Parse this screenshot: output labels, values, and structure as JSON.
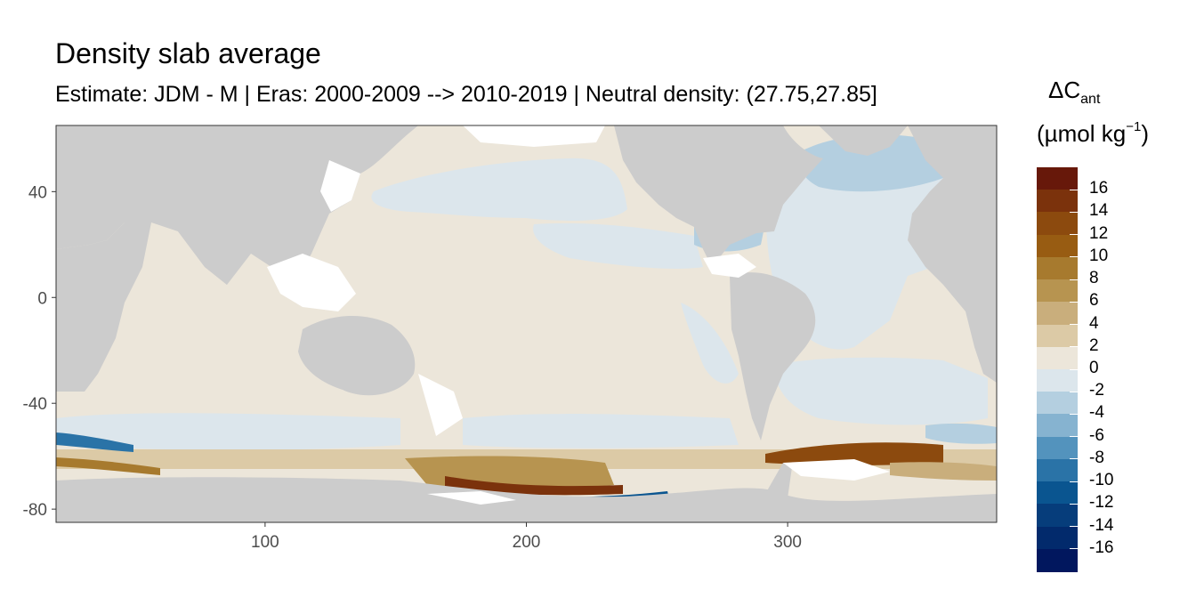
{
  "title": "Density slab average",
  "subtitle": "Estimate: JDM - M | Eras: 2000-2009 --> 2010-2019 | Neutral density: (27.75,27.85]",
  "chart_data": {
    "type": "heatmap",
    "title": "Density slab average",
    "subtitle": "Estimate: JDM - M | Eras: 2000-2009 --> 2010-2019 | Neutral density: (27.75,27.85]",
    "xlim": [
      20,
      380
    ],
    "ylim": [
      -85,
      65
    ],
    "x_ticks": [
      "100",
      "200",
      "300"
    ],
    "x_tick_values": [
      100,
      200,
      300
    ],
    "y_ticks": [
      "40",
      "0",
      "-40",
      "-80"
    ],
    "y_tick_values": [
      40,
      0,
      -40,
      -80
    ],
    "grid": false,
    "legend": {
      "title": "ΔC",
      "title_subscript": "ant",
      "unit": "(µmol kg",
      "unit_superscript": "−1",
      "unit_close": ")",
      "placement": "right",
      "labels": [
        "16",
        "14",
        "12",
        "10",
        "8",
        "6",
        "4",
        "2",
        "0",
        "-2",
        "-4",
        "-6",
        "-8",
        "-10",
        "-12",
        "-14",
        "-16"
      ],
      "colors": [
        "#67180a",
        "#7b320c",
        "#8c4a0e",
        "#985c12",
        "#a77a2e",
        "#b79450",
        "#c9ae7c",
        "#dccaa6",
        "#ece6da",
        "#dce6ec",
        "#b4cfe0",
        "#86b3d0",
        "#5393bd",
        "#2a73a7",
        "#0a5590",
        "#063d7b",
        "#022a6c",
        "#01175e"
      ]
    },
    "land_color": "#cccccc",
    "no_data_color": "#ffffff"
  }
}
